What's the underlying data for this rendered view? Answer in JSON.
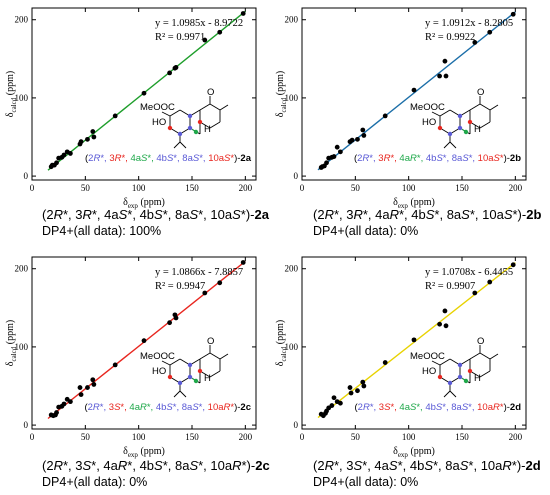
{
  "colors": {
    "black": "#000000",
    "red": "#e8261f",
    "green": "#1fa84a",
    "blue": "#5a5ad6",
    "fit_a": "#1e9e2b",
    "fit_b": "#1b6ea8",
    "fit_c": "#e8261f",
    "fit_d": "#e8d200"
  },
  "chart_data": [
    {
      "type": "scatter",
      "xlabel": "δ",
      "xlabel_sub": "exp",
      "xlabel_unit": " (ppm)",
      "ylabel": "δ",
      "ylabel_sub": "calcd",
      "ylabel_unit": " (ppm)",
      "xlim": [
        0,
        210
      ],
      "ylim": [
        -5,
        215
      ],
      "x_ticks": [
        0,
        50,
        100,
        150,
        200
      ],
      "y_ticks": [
        0,
        100,
        200
      ],
      "equation": "y = 1.0985x - 8.9722",
      "r2": "R² = 0.9971",
      "slope": 1.0985,
      "intercept": -8.9722,
      "line_color": "#1e9e2b",
      "points": [
        [
          18,
          12
        ],
        [
          19,
          14
        ],
        [
          21,
          14
        ],
        [
          23,
          17
        ],
        [
          25,
          23
        ],
        [
          28,
          24
        ],
        [
          30,
          27
        ],
        [
          33,
          31
        ],
        [
          36,
          29
        ],
        [
          45,
          41
        ],
        [
          46,
          44
        ],
        [
          52,
          47
        ],
        [
          57,
          57
        ],
        [
          58,
          50
        ],
        [
          78,
          77
        ],
        [
          105,
          106
        ],
        [
          129,
          132
        ],
        [
          134,
          138
        ],
        [
          135,
          139
        ],
        [
          162,
          174
        ],
        [
          176,
          184
        ],
        [
          198,
          208
        ]
      ],
      "stereo": [
        {
          "t": "(",
          "c": "black"
        },
        {
          "t": "2",
          "c": "blue"
        },
        {
          "t": "R",
          "c": "blue",
          "i": true
        },
        {
          "t": "*, ",
          "c": "blue"
        },
        {
          "t": "3",
          "c": "red"
        },
        {
          "t": "R",
          "c": "red",
          "i": true
        },
        {
          "t": "*, ",
          "c": "red"
        },
        {
          "t": "4a",
          "c": "green"
        },
        {
          "t": "S",
          "c": "green",
          "i": true
        },
        {
          "t": "*, ",
          "c": "green"
        },
        {
          "t": "4b",
          "c": "blue"
        },
        {
          "t": "S",
          "c": "blue",
          "i": true
        },
        {
          "t": "*, ",
          "c": "blue"
        },
        {
          "t": "8a",
          "c": "blue"
        },
        {
          "t": "S",
          "c": "blue",
          "i": true
        },
        {
          "t": "*, ",
          "c": "blue"
        },
        {
          "t": "10a",
          "c": "red"
        },
        {
          "t": "S",
          "c": "red",
          "i": true
        },
        {
          "t": "*",
          "c": "red"
        },
        {
          "t": ")-",
          "c": "black"
        },
        {
          "t": "2a",
          "c": "black",
          "b": true
        }
      ]
    },
    {
      "type": "scatter",
      "xlabel": "δ",
      "xlabel_sub": "exp",
      "xlabel_unit": " (ppm)",
      "ylabel": "δ",
      "ylabel_sub": "calcd",
      "ylabel_unit": " (ppm)",
      "xlim": [
        0,
        210
      ],
      "ylim": [
        -5,
        215
      ],
      "x_ticks": [
        0,
        50,
        100,
        150,
        200
      ],
      "y_ticks": [
        0,
        100,
        200
      ],
      "equation": "y = 1.0912x - 8.2805",
      "r2": "R² = 0.9922",
      "slope": 1.0912,
      "intercept": -8.2805,
      "line_color": "#1b6ea8",
      "points": [
        [
          18,
          11
        ],
        [
          19,
          12
        ],
        [
          21,
          13
        ],
        [
          23,
          17
        ],
        [
          25,
          23
        ],
        [
          28,
          24
        ],
        [
          30,
          25
        ],
        [
          33,
          37
        ],
        [
          36,
          31
        ],
        [
          45,
          44
        ],
        [
          47,
          46
        ],
        [
          52,
          47
        ],
        [
          57,
          59
        ],
        [
          58,
          52
        ],
        [
          78,
          77
        ],
        [
          105,
          110
        ],
        [
          129,
          128
        ],
        [
          134,
          147
        ],
        [
          135,
          128
        ],
        [
          162,
          171
        ],
        [
          176,
          184
        ],
        [
          198,
          207
        ]
      ],
      "stereo": [
        {
          "t": "(",
          "c": "black"
        },
        {
          "t": "2",
          "c": "blue"
        },
        {
          "t": "R",
          "c": "blue",
          "i": true
        },
        {
          "t": "*, ",
          "c": "blue"
        },
        {
          "t": "3",
          "c": "red"
        },
        {
          "t": "R",
          "c": "red",
          "i": true
        },
        {
          "t": "*, ",
          "c": "red"
        },
        {
          "t": "4a",
          "c": "green"
        },
        {
          "t": "R",
          "c": "green",
          "i": true
        },
        {
          "t": "*, ",
          "c": "green"
        },
        {
          "t": "4b",
          "c": "blue"
        },
        {
          "t": "S",
          "c": "blue",
          "i": true
        },
        {
          "t": "*, ",
          "c": "blue"
        },
        {
          "t": "8a",
          "c": "blue"
        },
        {
          "t": "S",
          "c": "blue",
          "i": true
        },
        {
          "t": "*, ",
          "c": "blue"
        },
        {
          "t": "10a",
          "c": "red"
        },
        {
          "t": "S",
          "c": "red",
          "i": true
        },
        {
          "t": "*",
          "c": "red"
        },
        {
          "t": ")-",
          "c": "black"
        },
        {
          "t": "2b",
          "c": "black",
          "b": true
        }
      ]
    },
    {
      "type": "scatter",
      "xlabel": "δ",
      "xlabel_sub": "exp",
      "xlabel_unit": " (ppm)",
      "ylabel": "δ",
      "ylabel_sub": "calcd",
      "ylabel_unit": " (ppm)",
      "xlim": [
        0,
        210
      ],
      "ylim": [
        -5,
        215
      ],
      "x_ticks": [
        0,
        50,
        100,
        150,
        200
      ],
      "y_ticks": [
        0,
        100,
        200
      ],
      "equation": "y = 1.0866x - 7.8857",
      "r2": "R² = 0.9947",
      "slope": 1.0866,
      "intercept": -7.8857,
      "line_color": "#e8261f",
      "points": [
        [
          18,
          13
        ],
        [
          20,
          12
        ],
        [
          22,
          13
        ],
        [
          23,
          16
        ],
        [
          25,
          23
        ],
        [
          28,
          24
        ],
        [
          30,
          27
        ],
        [
          33,
          33
        ],
        [
          36,
          30
        ],
        [
          45,
          48
        ],
        [
          46,
          39
        ],
        [
          52,
          48
        ],
        [
          57,
          58
        ],
        [
          58,
          52
        ],
        [
          78,
          77
        ],
        [
          105,
          108
        ],
        [
          129,
          131
        ],
        [
          134,
          141
        ],
        [
          135,
          137
        ],
        [
          162,
          169
        ],
        [
          176,
          182
        ],
        [
          198,
          208
        ]
      ],
      "stereo": [
        {
          "t": "(",
          "c": "black"
        },
        {
          "t": "2",
          "c": "blue"
        },
        {
          "t": "R",
          "c": "blue",
          "i": true
        },
        {
          "t": "*, ",
          "c": "blue"
        },
        {
          "t": "3",
          "c": "red"
        },
        {
          "t": "S",
          "c": "red",
          "i": true
        },
        {
          "t": "*, ",
          "c": "red"
        },
        {
          "t": "4a",
          "c": "green"
        },
        {
          "t": "R",
          "c": "green",
          "i": true
        },
        {
          "t": "*, ",
          "c": "green"
        },
        {
          "t": "4b",
          "c": "blue"
        },
        {
          "t": "S",
          "c": "blue",
          "i": true
        },
        {
          "t": "*, ",
          "c": "blue"
        },
        {
          "t": "8a",
          "c": "blue"
        },
        {
          "t": "S",
          "c": "blue",
          "i": true
        },
        {
          "t": "*, ",
          "c": "blue"
        },
        {
          "t": "10a",
          "c": "red"
        },
        {
          "t": "R",
          "c": "red",
          "i": true
        },
        {
          "t": "*",
          "c": "red"
        },
        {
          "t": ")-",
          "c": "black"
        },
        {
          "t": "2c",
          "c": "black",
          "b": true
        }
      ]
    },
    {
      "type": "scatter",
      "xlabel": "δ",
      "xlabel_sub": "exp",
      "xlabel_unit": " (ppm)",
      "ylabel": "δ",
      "ylabel_sub": "calcd",
      "ylabel_unit": " (ppm)",
      "xlim": [
        0,
        210
      ],
      "ylim": [
        -5,
        215
      ],
      "x_ticks": [
        0,
        50,
        100,
        150,
        200
      ],
      "y_ticks": [
        0,
        100,
        200
      ],
      "equation": "y = 1.0708x - 6.4455",
      "r2": "R² = 0.9907",
      "slope": 1.0708,
      "intercept": -6.4455,
      "line_color": "#e8d200",
      "points": [
        [
          18,
          14
        ],
        [
          20,
          12
        ],
        [
          22,
          15
        ],
        [
          23,
          18
        ],
        [
          25,
          22
        ],
        [
          28,
          25
        ],
        [
          30,
          35
        ],
        [
          33,
          30
        ],
        [
          36,
          28
        ],
        [
          45,
          48
        ],
        [
          46,
          41
        ],
        [
          52,
          44
        ],
        [
          57,
          55
        ],
        [
          58,
          50
        ],
        [
          78,
          80
        ],
        [
          105,
          109
        ],
        [
          129,
          129
        ],
        [
          134,
          146
        ],
        [
          135,
          127
        ],
        [
          162,
          169
        ],
        [
          176,
          183
        ],
        [
          198,
          205
        ]
      ],
      "stereo": [
        {
          "t": "(",
          "c": "black"
        },
        {
          "t": "2",
          "c": "blue"
        },
        {
          "t": "R",
          "c": "blue",
          "i": true
        },
        {
          "t": "*, ",
          "c": "blue"
        },
        {
          "t": "3",
          "c": "red"
        },
        {
          "t": "S",
          "c": "red",
          "i": true
        },
        {
          "t": "*, ",
          "c": "red"
        },
        {
          "t": "4a",
          "c": "green"
        },
        {
          "t": "S",
          "c": "green",
          "i": true
        },
        {
          "t": "*, ",
          "c": "green"
        },
        {
          "t": "4b",
          "c": "blue"
        },
        {
          "t": "S",
          "c": "blue",
          "i": true
        },
        {
          "t": "*, ",
          "c": "blue"
        },
        {
          "t": "8a",
          "c": "blue"
        },
        {
          "t": "S",
          "c": "blue",
          "i": true
        },
        {
          "t": "*, ",
          "c": "blue"
        },
        {
          "t": "10a",
          "c": "red"
        },
        {
          "t": "R",
          "c": "red",
          "i": true
        },
        {
          "t": "*",
          "c": "red"
        },
        {
          "t": ")-",
          "c": "black"
        },
        {
          "t": "2d",
          "c": "black",
          "b": true
        }
      ]
    }
  ],
  "captions": [
    {
      "label": [
        {
          "t": "(2"
        },
        {
          "t": "R",
          "i": true
        },
        {
          "t": "*, 3"
        },
        {
          "t": "R",
          "i": true
        },
        {
          "t": "*, 4a"
        },
        {
          "t": "S",
          "i": true
        },
        {
          "t": "*, 4b"
        },
        {
          "t": "S",
          "i": true
        },
        {
          "t": "*, 8a"
        },
        {
          "t": "S",
          "i": true
        },
        {
          "t": "*, 10a"
        },
        {
          "t": "S",
          "i": true
        },
        {
          "t": "*)-"
        },
        {
          "t": "2a",
          "b": true
        }
      ],
      "dp4": "DP4+(all data): 100%"
    },
    {
      "label": [
        {
          "t": "(2"
        },
        {
          "t": "R",
          "i": true
        },
        {
          "t": "*, 3"
        },
        {
          "t": "R",
          "i": true
        },
        {
          "t": "*, 4a"
        },
        {
          "t": "R",
          "i": true
        },
        {
          "t": "*, 4b"
        },
        {
          "t": "S",
          "i": true
        },
        {
          "t": "*, 8a"
        },
        {
          "t": "S",
          "i": true
        },
        {
          "t": "*, 10a"
        },
        {
          "t": "S",
          "i": true
        },
        {
          "t": "*)-"
        },
        {
          "t": "2b",
          "b": true
        }
      ],
      "dp4": "DP4+(all data): 0%"
    },
    {
      "label": [
        {
          "t": "(2"
        },
        {
          "t": "R",
          "i": true
        },
        {
          "t": "*, 3"
        },
        {
          "t": "S",
          "i": true
        },
        {
          "t": "*, 4a"
        },
        {
          "t": "R",
          "i": true
        },
        {
          "t": "*, 4b"
        },
        {
          "t": "S",
          "i": true
        },
        {
          "t": "*, 8a"
        },
        {
          "t": "S",
          "i": true
        },
        {
          "t": "*, 10a"
        },
        {
          "t": "R",
          "i": true
        },
        {
          "t": "*)-"
        },
        {
          "t": "2c",
          "b": true
        }
      ],
      "dp4": "DP4+(all data): 0%"
    },
    {
      "label": [
        {
          "t": "(2"
        },
        {
          "t": "R",
          "i": true
        },
        {
          "t": "*, 3"
        },
        {
          "t": "S",
          "i": true
        },
        {
          "t": "*, 4a"
        },
        {
          "t": "S",
          "i": true
        },
        {
          "t": "*, 4b"
        },
        {
          "t": "S",
          "i": true
        },
        {
          "t": "*, 8a"
        },
        {
          "t": "S",
          "i": true
        },
        {
          "t": "*, 10a"
        },
        {
          "t": "R",
          "i": true
        },
        {
          "t": "*)-"
        },
        {
          "t": "2d",
          "b": true
        }
      ],
      "dp4": "DP4+(all data): 0%"
    }
  ],
  "molecule": {
    "atom_o": "O",
    "atom_h": "H",
    "group_ester": "MeOOC",
    "group_oh": "HO"
  }
}
